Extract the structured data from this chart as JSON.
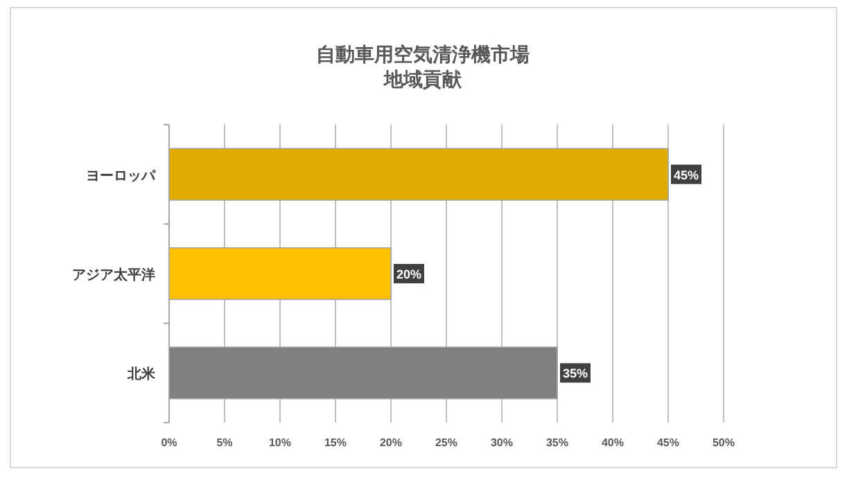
{
  "chart_data": {
    "type": "bar",
    "orientation": "horizontal",
    "title": "自動車用空気清浄機市場",
    "subtitle": "地域貢献",
    "categories": [
      "ヨーロッパ",
      "アジア太平洋",
      "北米"
    ],
    "values": [
      45,
      20,
      35
    ],
    "colors": [
      "#e2ab00",
      "#ffc000",
      "#808080"
    ],
    "value_labels": [
      "45%",
      "20%",
      "35%"
    ],
    "xlim": [
      0,
      50
    ],
    "xticks": [
      {
        "value": 0,
        "label": "0%"
      },
      {
        "value": 5,
        "label": "5%"
      },
      {
        "value": 10,
        "label": "10%"
      },
      {
        "value": 15,
        "label": "15%"
      },
      {
        "value": 20,
        "label": "20%"
      },
      {
        "value": 25,
        "label": "25%"
      },
      {
        "value": 30,
        "label": "30%"
      },
      {
        "value": 35,
        "label": "35%"
      },
      {
        "value": 40,
        "label": "40%"
      },
      {
        "value": 45,
        "label": "45%"
      },
      {
        "value": 50,
        "label": "50%"
      }
    ],
    "grid": "x"
  }
}
